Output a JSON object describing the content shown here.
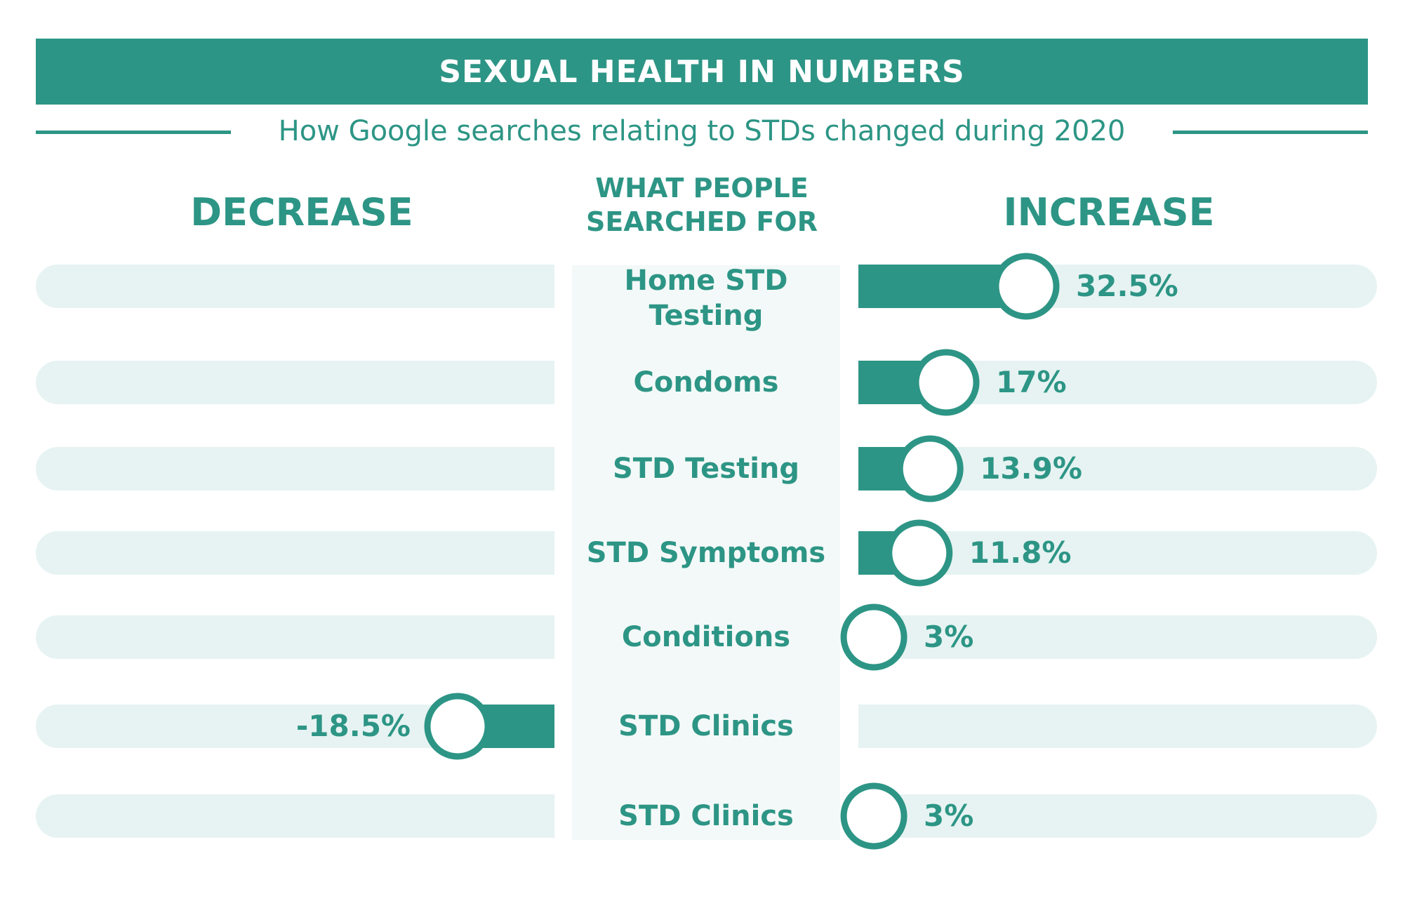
{
  "header": {
    "title": "SEXUAL HEALTH IN NUMBERS",
    "subtitle": "How Google searches relating to STDs changed during 2020"
  },
  "columns": {
    "decrease": "DECREASE",
    "middle_line1": "WHAT PEOPLE",
    "middle_line2": "SEARCHED FOR",
    "increase": "INCREASE"
  },
  "colors": {
    "accent": "#2d9585",
    "track": "#e6f3f2",
    "panel": "#f3f9f8"
  },
  "chart_data": {
    "type": "bar",
    "orientation": "horizontal-diverging",
    "categories": [
      "Home STD Testing",
      "Condoms",
      "STD Testing",
      "STD Symptoms",
      "Conditions",
      "STD Clinics",
      "STD Clinics"
    ],
    "values": [
      32.5,
      17,
      13.9,
      11.8,
      3,
      -18.5,
      3
    ],
    "value_labels": [
      "32.5%",
      "17%",
      "13.9%",
      "11.8%",
      "3%",
      "-18.5%",
      "3%"
    ],
    "title": "SEXUAL HEALTH IN NUMBERS",
    "subtitle": "How Google searches relating to STDs changed during 2020",
    "xlabel_left": "DECREASE",
    "xlabel_right": "INCREASE",
    "grid": false,
    "legend": false
  }
}
